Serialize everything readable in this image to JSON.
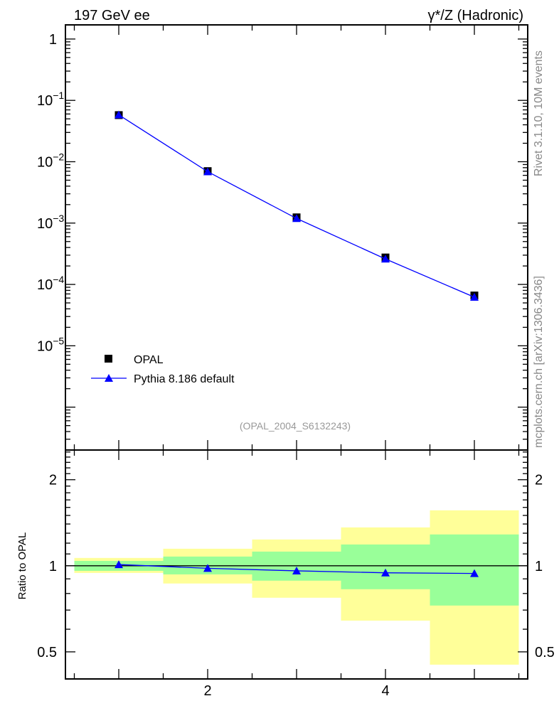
{
  "chart_data": [
    {
      "type": "line",
      "panel": "main",
      "title_left": "197 GeV ee",
      "title_right": "γ*/Z (Hadronic)",
      "yscale": "log",
      "ylim": [
        2e-07,
        1.7
      ],
      "xlim": [
        0.4,
        5.6
      ],
      "yticks": [
        {
          "v": 1,
          "label": "1"
        },
        {
          "v": 0.1,
          "label": "10",
          "exp": "−1"
        },
        {
          "v": 0.01,
          "label": "10",
          "exp": "−2"
        },
        {
          "v": 0.001,
          "label": "10",
          "exp": "−3"
        },
        {
          "v": 0.0001,
          "label": "10",
          "exp": "−4"
        },
        {
          "v": 1e-05,
          "label": "10",
          "exp": "−5"
        }
      ],
      "annotation": "(OPAL_2004_S6132243)",
      "legend": {
        "placement": "bottom-left",
        "entries": [
          "OPAL",
          "Pythia 8.186 default"
        ]
      },
      "series": [
        {
          "name": "OPAL",
          "marker": "square",
          "color": "#000000",
          "x": [
            1,
            2,
            3,
            4,
            5
          ],
          "y": [
            0.0575,
            0.00703,
            0.00124,
            0.000275,
            6.6e-05
          ]
        },
        {
          "name": "Pythia 8.186 default",
          "marker": "triangle",
          "color": "#0000ff",
          "x": [
            1,
            2,
            3,
            4,
            5
          ],
          "y": [
            0.0581,
            0.00689,
            0.00119,
            0.00026,
            6.2e-05
          ]
        }
      ]
    },
    {
      "type": "line",
      "panel": "ratio",
      "ylabel": "Ratio to OPAL",
      "yscale": "log",
      "ylim": [
        0.402,
        2.54
      ],
      "xlim": [
        0.4,
        5.6
      ],
      "xticks": [
        {
          "v": 2,
          "label": "2"
        },
        {
          "v": 4,
          "label": "4"
        }
      ],
      "yticks": [
        {
          "v": 0.5,
          "label": "0.5"
        },
        {
          "v": 1,
          "label": "1"
        },
        {
          "v": 2,
          "label": "2"
        }
      ],
      "bins": [
        [
          0.5,
          1.5
        ],
        [
          1.5,
          2.5
        ],
        [
          2.5,
          3.5
        ],
        [
          3.5,
          4.5
        ],
        [
          4.5,
          5.5
        ]
      ],
      "band_yellow": {
        "color": "#ffff99",
        "upper": [
          1.065,
          1.147,
          1.236,
          1.362,
          1.563
        ],
        "lower": [
          0.944,
          0.867,
          0.773,
          0.643,
          0.451
        ]
      },
      "band_green": {
        "color": "#99ff99",
        "upper": [
          1.04,
          1.077,
          1.121,
          1.187,
          1.287
        ],
        "lower": [
          0.96,
          0.933,
          0.887,
          0.828,
          0.726
        ]
      },
      "series": [
        {
          "name": "Pythia 8.186 default",
          "color": "#0000ff",
          "x": [
            1,
            2,
            3,
            4,
            5
          ],
          "y": [
            1.01,
            0.98,
            0.96,
            0.945,
            0.94
          ]
        }
      ]
    }
  ],
  "side_text": {
    "rivet": "Rivet 3.1.10,  10M events",
    "mcplots": "mcplots.cern.ch [arXiv:1306.3436]"
  }
}
